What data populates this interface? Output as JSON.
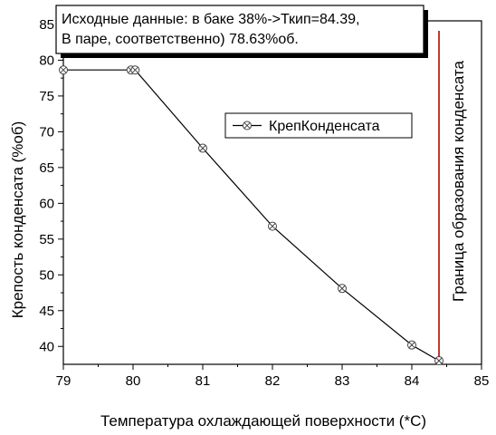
{
  "chart_data": {
    "type": "line",
    "xlabel": "Температура охлаждающей поверхности (*С)",
    "ylabel": "Крепость конденсата (%об)",
    "xlim": [
      79,
      85
    ],
    "ylim": [
      37.5,
      85.5
    ],
    "xticks": [
      79,
      80,
      81,
      82,
      83,
      84,
      85
    ],
    "yticks": [
      40,
      45,
      50,
      55,
      60,
      65,
      70,
      75,
      80,
      85
    ],
    "grid": false,
    "legend_position": "upper-right",
    "series": [
      {
        "name": "КрепКонденсата",
        "color": "#000000",
        "marker": "circle-x",
        "x": [
          79.0,
          79.97,
          80.03,
          81.0,
          82.0,
          83.0,
          84.0,
          84.39
        ],
        "y": [
          78.63,
          78.63,
          78.63,
          67.7,
          56.8,
          48.1,
          40.2,
          38.0
        ]
      }
    ],
    "annotation": {
      "lines": [
        "Исходные данные: в баке 38%->Ткип=84.39,",
        "В паре, соответственно) 78.63%об."
      ]
    },
    "boundary_line": {
      "x": 84.39,
      "color": "#c0392b",
      "label": "Граница образования конденсата"
    }
  }
}
